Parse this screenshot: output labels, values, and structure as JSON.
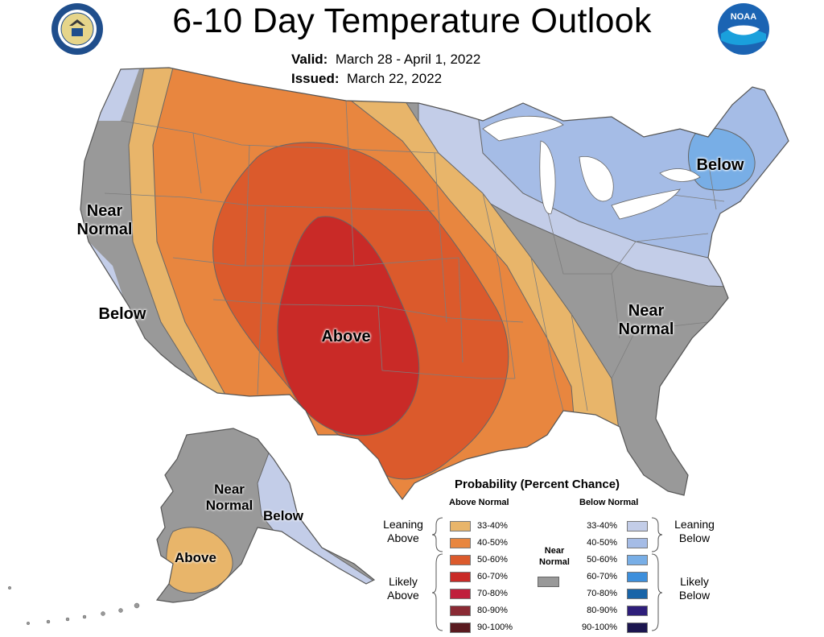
{
  "header": {
    "title": "6-10 Day Temperature Outlook",
    "valid_label": "Valid:",
    "valid_value": "March 28 - April 1, 2022",
    "issued_label": "Issued:",
    "issued_value": "March 22, 2022"
  },
  "logos": {
    "left_icon": "department-of-commerce-seal",
    "right_icon": "noaa-logo",
    "right_text": "NOAA"
  },
  "map_labels": {
    "west_near_normal": "Near Normal",
    "west_below": "Below",
    "center_above": "Above",
    "northeast_below": "Below",
    "southeast_near_normal": "Near Normal",
    "alaska_near_normal": "Near Normal",
    "alaska_below": "Below",
    "alaska_above": "Above"
  },
  "colors": {
    "near_normal": "#999999",
    "above": [
      "#e8b56a",
      "#e8863f",
      "#db5a2c",
      "#c92a27",
      "#c01f3c",
      "#8a2a34",
      "#5a1b20"
    ],
    "below": [
      "#c3cde8",
      "#a5bce6",
      "#78aee6",
      "#3d8fdc",
      "#1864a8",
      "#2e1e7a",
      "#1c164f"
    ],
    "land": "#ffffff",
    "state_lines": "#7d7d7d"
  },
  "legend": {
    "title": "Probability (Percent Chance)",
    "above_header": "Above Normal",
    "below_header": "Below Normal",
    "near_normal": "Near Normal",
    "ranges": [
      "33-40%",
      "40-50%",
      "50-60%",
      "60-70%",
      "70-80%",
      "80-90%",
      "90-100%"
    ],
    "leaning_above": "Leaning Above",
    "likely_above": "Likely Above",
    "leaning_below": "Leaning Below",
    "likely_below": "Likely Below"
  }
}
